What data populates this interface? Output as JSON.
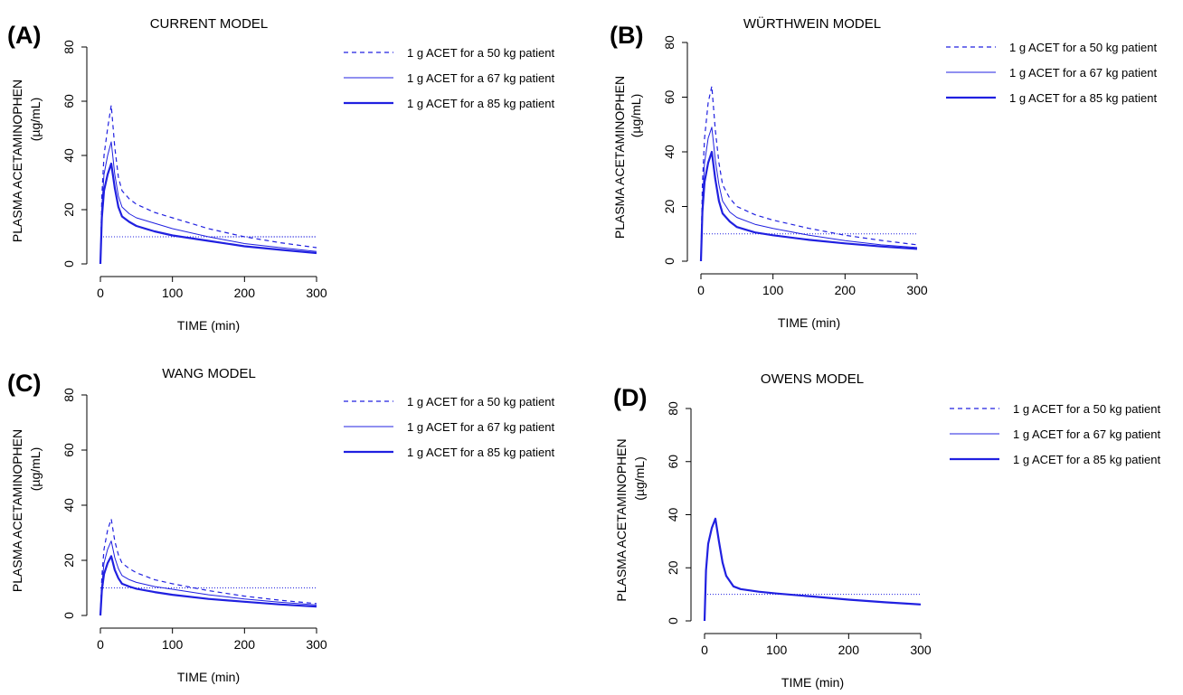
{
  "figure": {
    "panel_letters": [
      "(A)",
      "(B)",
      "(C)",
      "(D)"
    ],
    "y_axis_label_line1": "PLASMA ACETAMINOPHEN",
    "y_axis_label_line2": "(µg/mL)",
    "x_axis_label": "TIME (min)",
    "line_color": "#2020e0"
  },
  "chart_data": [
    {
      "type": "line",
      "panel": "(A)",
      "title": "CURRENT MODEL",
      "xlabel": "TIME (min)",
      "ylabel": "PLASMA ACETAMINOPHEN (µg/mL)",
      "xlim": [
        0,
        300
      ],
      "ylim": [
        0,
        80
      ],
      "x_ticks": [
        0,
        100,
        200,
        300
      ],
      "y_ticks": [
        0,
        20,
        40,
        60,
        80
      ],
      "grid": false,
      "legend_position": "right",
      "reference_lines": [
        {
          "style": "dotted",
          "x": [
            0,
            300
          ],
          "y": [
            10,
            10
          ]
        },
        {
          "style": "dotted",
          "x": [
            150,
            300
          ],
          "y": [
            10,
            10
          ]
        }
      ],
      "series": [
        {
          "name": "1 g ACET for a 50 kg patient",
          "style": "dashed",
          "x": [
            0,
            2,
            5,
            10,
            15,
            20,
            25,
            30,
            40,
            50,
            75,
            100,
            150,
            200,
            250,
            300
          ],
          "y": [
            0,
            25,
            40,
            50,
            58.5,
            43,
            32,
            27,
            24,
            22,
            19,
            17,
            13,
            10,
            7.8,
            6
          ]
        },
        {
          "name": "1 g ACET for a 67 kg patient",
          "style": "solid-thin",
          "x": [
            0,
            2,
            5,
            10,
            15,
            20,
            25,
            30,
            40,
            50,
            75,
            100,
            150,
            200,
            250,
            300
          ],
          "y": [
            0,
            21,
            33,
            40,
            45,
            33,
            25,
            21,
            18.5,
            17,
            15,
            13,
            10,
            7.5,
            6,
            4.6
          ]
        },
        {
          "name": "1 g ACET for a 85 kg patient",
          "style": "solid-thick",
          "x": [
            0,
            2,
            5,
            10,
            15,
            20,
            25,
            30,
            40,
            50,
            75,
            100,
            150,
            200,
            250,
            300
          ],
          "y": [
            0,
            17,
            27,
            33,
            37,
            28,
            21,
            17.5,
            15.5,
            14,
            12,
            10.5,
            8.5,
            6.5,
            5.2,
            4
          ]
        }
      ]
    },
    {
      "type": "line",
      "panel": "(B)",
      "title": "WÜRTHWEIN MODEL",
      "xlabel": "TIME (min)",
      "ylabel": "PLASMA ACETAMINOPHEN (µg/mL)",
      "xlim": [
        0,
        300
      ],
      "ylim": [
        0,
        80
      ],
      "x_ticks": [
        0,
        100,
        200,
        300
      ],
      "y_ticks": [
        0,
        20,
        40,
        60,
        80
      ],
      "grid": false,
      "legend_position": "right",
      "reference_lines": [
        {
          "style": "dotted",
          "x": [
            0,
            300
          ],
          "y": [
            10,
            10
          ]
        }
      ],
      "series": [
        {
          "name": "1 g ACET for a 50 kg patient",
          "style": "dashed",
          "x": [
            0,
            2,
            5,
            10,
            15,
            20,
            25,
            30,
            40,
            50,
            75,
            100,
            150,
            200,
            250,
            300
          ],
          "y": [
            0,
            28,
            45,
            58,
            64,
            48,
            36,
            28,
            23,
            20,
            17,
            15,
            12,
            9.5,
            7.6,
            6
          ]
        },
        {
          "name": "1 g ACET for a 67 kg patient",
          "style": "solid-thin",
          "x": [
            0,
            2,
            5,
            10,
            15,
            20,
            25,
            30,
            40,
            50,
            75,
            100,
            150,
            200,
            250,
            300
          ],
          "y": [
            0,
            22,
            36,
            45,
            49,
            37,
            28,
            22,
            18,
            16,
            13.5,
            12,
            9.5,
            7.5,
            6,
            5
          ]
        },
        {
          "name": "1 g ACET for a 85 kg patient",
          "style": "solid-thick",
          "x": [
            0,
            2,
            5,
            10,
            15,
            20,
            25,
            30,
            40,
            50,
            75,
            100,
            150,
            200,
            250,
            300
          ],
          "y": [
            0,
            18,
            29,
            36,
            40,
            30,
            22,
            17.5,
            14.5,
            12.5,
            10.5,
            9.5,
            7.8,
            6.5,
            5.4,
            4.5
          ]
        }
      ]
    },
    {
      "type": "line",
      "panel": "(C)",
      "title": "WANG MODEL",
      "xlabel": "TIME (min)",
      "ylabel": "PLASMA ACETAMINOPHEN (µg/mL)",
      "xlim": [
        0,
        300
      ],
      "ylim": [
        0,
        80
      ],
      "x_ticks": [
        0,
        100,
        200,
        300
      ],
      "y_ticks": [
        0,
        20,
        40,
        60,
        80
      ],
      "grid": false,
      "legend_position": "right",
      "reference_lines": [
        {
          "style": "dotted",
          "x": [
            0,
            300
          ],
          "y": [
            10,
            10
          ]
        }
      ],
      "series": [
        {
          "name": "1 g ACET for a 50 kg patient",
          "style": "dashed",
          "x": [
            0,
            2,
            5,
            10,
            15,
            20,
            25,
            30,
            40,
            50,
            75,
            100,
            150,
            200,
            250,
            300
          ],
          "y": [
            0,
            14,
            24,
            31,
            35,
            27,
            22,
            19,
            17,
            15.5,
            13,
            11.5,
            9,
            7,
            5.5,
            4.3
          ]
        },
        {
          "name": "1 g ACET for a 67 kg patient",
          "style": "solid-thin",
          "x": [
            0,
            2,
            5,
            10,
            15,
            20,
            25,
            30,
            40,
            50,
            75,
            100,
            150,
            200,
            250,
            300
          ],
          "y": [
            0,
            11,
            19,
            24,
            27,
            21,
            17,
            14.5,
            13,
            12,
            10.5,
            9.5,
            7.5,
            6,
            4.8,
            3.8
          ]
        },
        {
          "name": "1 g ACET for a 85 kg patient",
          "style": "solid-thick",
          "x": [
            0,
            2,
            5,
            10,
            15,
            20,
            25,
            30,
            40,
            50,
            75,
            100,
            150,
            200,
            250,
            300
          ],
          "y": [
            0,
            9,
            15,
            19,
            21.5,
            16.5,
            13.5,
            11.5,
            10.5,
            9.7,
            8.5,
            7.5,
            6,
            5,
            4,
            3.2
          ]
        }
      ]
    },
    {
      "type": "line",
      "panel": "(D)",
      "title": "OWENS MODEL",
      "xlabel": "TIME (min)",
      "ylabel": "PLASMA ACETAMINOPHEN (µg/mL)",
      "xlim": [
        0,
        300
      ],
      "ylim": [
        0,
        80
      ],
      "x_ticks": [
        0,
        100,
        200,
        300
      ],
      "y_ticks": [
        0,
        20,
        40,
        60,
        80
      ],
      "grid": false,
      "legend_position": "right",
      "reference_lines": [
        {
          "style": "dotted",
          "x": [
            0,
            300
          ],
          "y": [
            10,
            10
          ]
        }
      ],
      "series": [
        {
          "name": "1 g ACET for a 50 kg patient",
          "style": "dashed",
          "x": [
            0,
            2,
            5,
            10,
            15,
            20,
            25,
            30,
            40,
            50,
            75,
            100,
            150,
            200,
            250,
            300
          ],
          "y": [
            0,
            19,
            29,
            35,
            38.5,
            30,
            22,
            17,
            13,
            12,
            11,
            10.3,
            9.2,
            8,
            7,
            6.2
          ]
        },
        {
          "name": "1 g ACET for a 67 kg patient",
          "style": "solid-thin",
          "x": [
            0,
            2,
            5,
            10,
            15,
            20,
            25,
            30,
            40,
            50,
            75,
            100,
            150,
            200,
            250,
            300
          ],
          "y": [
            0,
            19,
            29,
            35,
            38.5,
            30,
            22,
            17,
            13,
            12,
            11,
            10.3,
            9.2,
            8,
            7,
            6.2
          ]
        },
        {
          "name": "1 g ACET for a 85 kg patient",
          "style": "solid-thick",
          "x": [
            0,
            2,
            5,
            10,
            15,
            20,
            25,
            30,
            40,
            50,
            75,
            100,
            150,
            200,
            250,
            300
          ],
          "y": [
            0,
            19,
            29,
            35,
            38.5,
            30,
            22,
            17,
            13,
            12,
            11,
            10.3,
            9.2,
            8,
            7,
            6.2
          ]
        }
      ]
    }
  ]
}
